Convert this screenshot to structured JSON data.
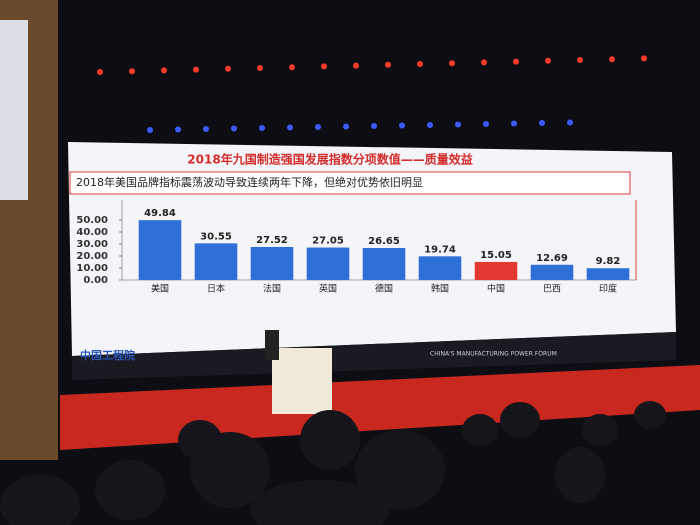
{
  "chart_data": {
    "type": "bar",
    "title": "2018年九国制造强国发展指数分项数值——质量效益",
    "subtitle": "2018年美国品牌指标震荡波动导致连续两年下降，但绝对优势依旧明显",
    "categories": [
      "美国",
      "日本",
      "法国",
      "英国",
      "德国",
      "韩国",
      "中国",
      "巴西",
      "印度"
    ],
    "values": [
      49.84,
      30.55,
      27.52,
      27.05,
      26.65,
      19.74,
      15.05,
      12.69,
      9.82
    ],
    "colors": [
      "#2f6fd8",
      "#2f6fd8",
      "#2f6fd8",
      "#2f6fd8",
      "#2f6fd8",
      "#2f6fd8",
      "#e23a32",
      "#2f6fd8",
      "#2f6fd8"
    ],
    "ylim": [
      0,
      60
    ],
    "yticks": [
      {
        "value": 0,
        "label": "0.00"
      },
      {
        "value": 10,
        "label": "10.00"
      },
      {
        "value": 20,
        "label": "20.00"
      },
      {
        "value": 30,
        "label": "30.00"
      },
      {
        "value": 40,
        "label": "40.00"
      },
      {
        "value": 50,
        "label": "50.00"
      }
    ]
  },
  "banner": {
    "org": "中国工程院",
    "forum": "CHINA'S MANUFACTURING POWER FORUM"
  }
}
